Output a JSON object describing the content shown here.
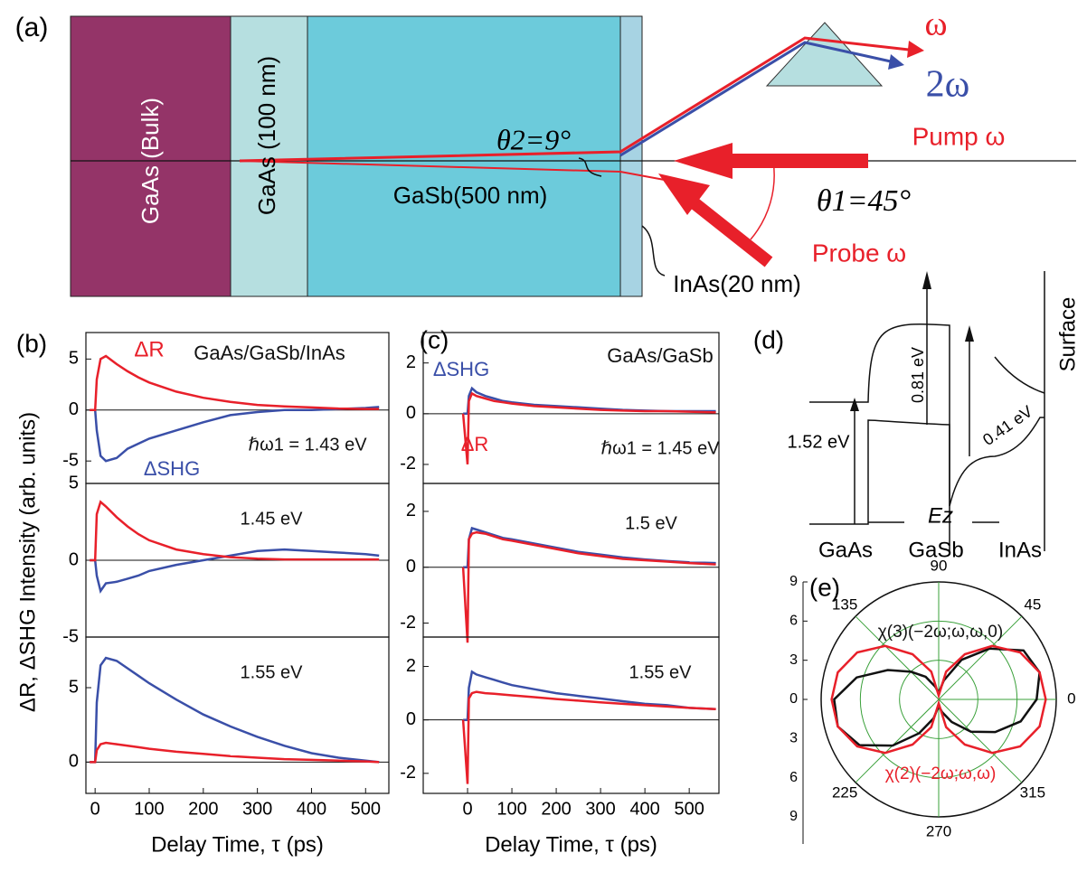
{
  "diagram_a": {
    "label": "(a)",
    "layer_bulk": "GaAs (Bulk)",
    "layer_gaas": "GaAs (100 nm)",
    "layer_gasb": "GaSb(500 nm)",
    "layer_inas": "InAs(20 nm)",
    "theta2": "θ2=9°",
    "omega": "ω",
    "two_omega": "2ω",
    "pump": "Pump ω",
    "probe": "Probe ω",
    "theta1": "θ1=45°"
  },
  "diagram_d": {
    "label": "(d)",
    "surface": "Surface",
    "gap_gasb": "0.81 eV",
    "gap_gaas": "1.52 eV",
    "gap_inas": "0.41 eV",
    "field": "Ez",
    "gaas": "GaAs",
    "gasb": "GaSb",
    "inas": "InAs"
  },
  "panel_labels": {
    "b": "(b)",
    "c": "(c)",
    "e": "(e)"
  },
  "chart_data": [
    {
      "type": "line",
      "ylabel": "ΔR, ΔSHG Intensity (arb. units)",
      "annotations": [
        "ΔR",
        "GaAs/GaSb/InAs",
        "ℏω1 = 1.43 eV",
        "ΔSHG"
      ],
      "x": [
        -10,
        0,
        3,
        10,
        20,
        40,
        60,
        80,
        100,
        150,
        200,
        250,
        300,
        350,
        400,
        450,
        500,
        525
      ],
      "xlim": [
        -17,
        543
      ],
      "ylim": [
        -7.2,
        7.6
      ],
      "yticks": [
        -5,
        0,
        5
      ],
      "series": [
        {
          "name": "ΔSHG",
          "color": "#3a4fa8",
          "values": [
            0,
            0,
            -2,
            -4.5,
            -5,
            -4.7,
            -3.8,
            -3.3,
            -2.8,
            -2,
            -1.2,
            -0.5,
            -0.2,
            0,
            0,
            0.1,
            0.2,
            0.3
          ]
        },
        {
          "name": "ΔR",
          "color": "#e8202a",
          "values": [
            0,
            0,
            3,
            5,
            5.3,
            4.5,
            3.8,
            3.2,
            2.7,
            1.8,
            1.2,
            0.8,
            0.5,
            0.35,
            0.25,
            0.15,
            0.1,
            0.1
          ]
        }
      ]
    },
    {
      "type": "line",
      "annotations": [
        "1.45 eV"
      ],
      "x": [
        -10,
        0,
        3,
        10,
        20,
        40,
        60,
        80,
        100,
        150,
        200,
        250,
        300,
        350,
        400,
        450,
        500,
        525
      ],
      "xlim": [
        -17,
        543
      ],
      "ylim": [
        -5,
        5
      ],
      "yticks": [
        -5,
        0,
        5
      ],
      "series": [
        {
          "name": "ΔSHG",
          "color": "#3a4fa8",
          "values": [
            0,
            0,
            -1,
            -2,
            -1.5,
            -1.4,
            -1.2,
            -1,
            -0.7,
            -0.3,
            0,
            0.3,
            0.6,
            0.7,
            0.6,
            0.5,
            0.4,
            0.3
          ]
        },
        {
          "name": "ΔR",
          "color": "#e8202a",
          "values": [
            0,
            0,
            3,
            3.8,
            3.5,
            2.8,
            2.2,
            1.7,
            1.3,
            0.7,
            0.4,
            0.2,
            0.1,
            0.05,
            0.05,
            0.05,
            0.05,
            0.05
          ]
        }
      ]
    },
    {
      "type": "line",
      "annotations": [
        "1.55 eV"
      ],
      "xlabel": "Delay Time, τ (ps)",
      "x": [
        -10,
        0,
        3,
        10,
        20,
        40,
        60,
        80,
        100,
        150,
        200,
        250,
        300,
        350,
        400,
        450,
        500,
        525
      ],
      "xlim": [
        -17,
        543
      ],
      "xticks": [
        0,
        100,
        200,
        300,
        400,
        500
      ],
      "ylim": [
        -2.1,
        8.4
      ],
      "yticks": [
        0,
        5
      ],
      "series": [
        {
          "name": "ΔSHG",
          "color": "#3a4fa8",
          "values": [
            0,
            0,
            4,
            6.5,
            7,
            6.8,
            6.3,
            5.8,
            5.3,
            4.2,
            3.2,
            2.4,
            1.7,
            1.1,
            0.6,
            0.3,
            0.1,
            0
          ]
        },
        {
          "name": "ΔR",
          "color": "#e8202a",
          "values": [
            0,
            0,
            0.8,
            1.2,
            1.3,
            1.2,
            1.1,
            1,
            0.9,
            0.7,
            0.55,
            0.4,
            0.3,
            0.2,
            0.15,
            0.1,
            0.05,
            0
          ]
        }
      ]
    },
    {
      "type": "line",
      "annotations": [
        "ΔSHG",
        "GaAs/GaSb",
        "ΔR",
        "ℏω1 = 1.45 eV"
      ],
      "x": [
        -10,
        0,
        3,
        10,
        20,
        40,
        60,
        80,
        100,
        150,
        200,
        250,
        300,
        350,
        400,
        450,
        500,
        560
      ],
      "xlim": [
        -100,
        567
      ],
      "ylim": [
        -2.75,
        3.2
      ],
      "yticks": [
        -2,
        0,
        2
      ],
      "series": [
        {
          "name": "ΔSHG",
          "color": "#3a4fa8",
          "values": [
            0,
            0,
            0.7,
            1,
            0.85,
            0.7,
            0.6,
            0.5,
            0.45,
            0.35,
            0.3,
            0.25,
            0.2,
            0.15,
            0.12,
            0.1,
            0.1,
            0.1
          ]
        },
        {
          "name": "ΔR",
          "color": "#e8202a",
          "values": [
            0,
            -2,
            0.5,
            0.8,
            0.7,
            0.6,
            0.5,
            0.45,
            0.4,
            0.3,
            0.25,
            0.2,
            0.15,
            0.12,
            0.1,
            0.1,
            0.08,
            0.05
          ]
        }
      ]
    },
    {
      "type": "line",
      "annotations": [
        "1.5 eV"
      ],
      "x": [
        -10,
        0,
        3,
        10,
        20,
        40,
        60,
        80,
        100,
        150,
        200,
        250,
        300,
        350,
        400,
        450,
        500,
        560
      ],
      "xlim": [
        -100,
        567
      ],
      "ylim": [
        -2.5,
        3
      ],
      "yticks": [
        -2,
        0,
        2
      ],
      "series": [
        {
          "name": "ΔSHG",
          "color": "#3a4fa8",
          "values": [
            0,
            0,
            1,
            1.4,
            1.35,
            1.25,
            1.15,
            1.05,
            1,
            0.85,
            0.7,
            0.55,
            0.45,
            0.35,
            0.28,
            0.22,
            0.18,
            0.15
          ]
        },
        {
          "name": "ΔR",
          "color": "#e8202a",
          "values": [
            0,
            -2.7,
            1,
            1.2,
            1.25,
            1.2,
            1.1,
            1,
            0.95,
            0.8,
            0.65,
            0.5,
            0.4,
            0.3,
            0.25,
            0.2,
            0.15,
            0.1
          ]
        }
      ]
    },
    {
      "type": "line",
      "annotations": [
        "1.55 eV"
      ],
      "xlabel": "Delay Time, τ (ps)",
      "x": [
        -10,
        0,
        3,
        10,
        20,
        40,
        60,
        80,
        100,
        150,
        200,
        250,
        300,
        350,
        400,
        450,
        500,
        560
      ],
      "xlim": [
        -100,
        567
      ],
      "xticks": [
        0,
        100,
        200,
        300,
        400,
        500
      ],
      "ylim": [
        -2.75,
        3.1
      ],
      "yticks": [
        -2,
        0,
        2
      ],
      "series": [
        {
          "name": "ΔSHG",
          "color": "#3a4fa8",
          "values": [
            0,
            0,
            1.2,
            1.8,
            1.7,
            1.6,
            1.5,
            1.4,
            1.3,
            1.15,
            1,
            0.9,
            0.8,
            0.7,
            0.6,
            0.55,
            0.45,
            0.4
          ]
        },
        {
          "name": "ΔR",
          "color": "#e8202a",
          "values": [
            0,
            -2.4,
            0.8,
            1,
            1.05,
            1,
            0.98,
            0.95,
            0.92,
            0.85,
            0.78,
            0.72,
            0.66,
            0.6,
            0.55,
            0.5,
            0.45,
            0.4
          ]
        }
      ]
    },
    {
      "type": "polar",
      "annotations": [
        "χ(3)(−2ω;ω,ω,0)",
        "χ(2)(−2ω;ω,ω)"
      ],
      "theta": [
        0,
        15,
        30,
        45,
        60,
        75,
        90,
        105,
        120,
        135,
        150,
        165,
        180,
        195,
        210,
        225,
        240,
        255,
        270,
        285,
        300,
        315,
        330,
        345
      ],
      "rlim": [
        0,
        9
      ],
      "rticks": [
        0,
        3,
        6,
        9
      ],
      "thetaticks": [
        0,
        45,
        90,
        135,
        225,
        270,
        315
      ],
      "series": [
        {
          "name": "χ(3)(−2ω;ω,ω,0)",
          "color": "#111111",
          "values": [
            7.5,
            8,
            7.5,
            5.5,
            3.5,
            1.5,
            0.5,
            1,
            2,
            3,
            4.5,
            6.5,
            8,
            8,
            7,
            5,
            3,
            1.5,
            0.5,
            1,
            2,
            3.5,
            5,
            6.5
          ]
        },
        {
          "name": "χ(2)(−2ω;ω,ω)",
          "color": "#e8202a",
          "values": [
            8.2,
            8,
            7.2,
            5.8,
            4,
            2.2,
            0.3,
            2.2,
            4,
            5.8,
            7.2,
            8,
            8.2,
            8,
            7.2,
            5.8,
            4,
            2.2,
            0.3,
            2.2,
            4,
            5.8,
            7.2,
            8
          ]
        }
      ]
    }
  ]
}
